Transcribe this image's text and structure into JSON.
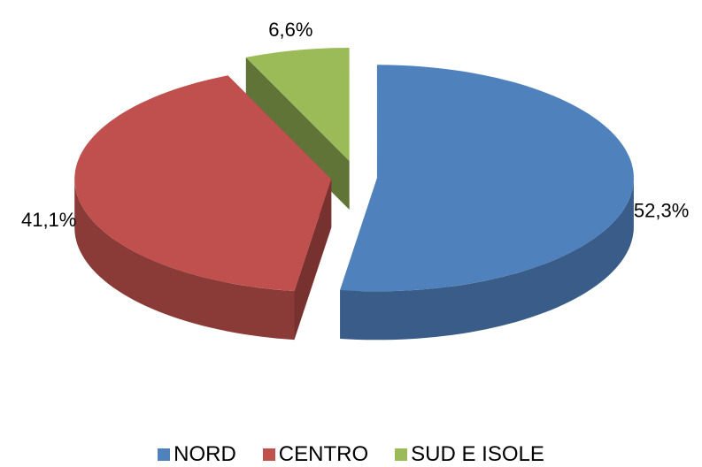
{
  "chart_data": {
    "type": "pie3d",
    "categories": [
      "NORD",
      "CENTRO",
      "SUD E ISOLE"
    ],
    "values": [
      52.3,
      41.1,
      6.6
    ],
    "value_labels": [
      "52,3%",
      "41,1%",
      "6,6%"
    ],
    "colors": [
      "#4f81bd",
      "#c0504d",
      "#9bbb59"
    ],
    "exploded": true,
    "legend": "bottom"
  }
}
